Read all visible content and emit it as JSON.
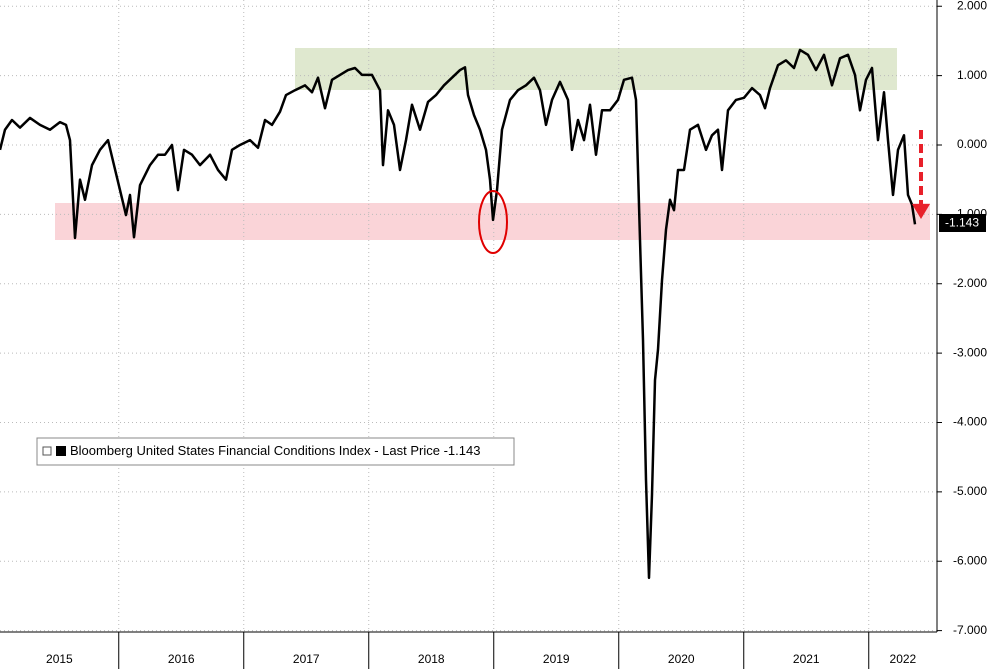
{
  "chart_data": {
    "type": "line",
    "x": [
      2015.05,
      2015.09,
      2015.146,
      2015.21,
      2015.29,
      2015.37,
      2015.45,
      2015.53,
      2015.578,
      2015.61,
      2015.65,
      2015.69,
      2015.73,
      2015.786,
      2015.85,
      2015.914,
      2015.962,
      2016.01,
      2016.058,
      2016.09,
      2016.122,
      2016.17,
      2016.25,
      2016.314,
      2016.37,
      2016.426,
      2016.474,
      2016.522,
      2016.586,
      2016.65,
      2016.73,
      2016.794,
      2016.858,
      2016.906,
      2016.97,
      2017.05,
      2017.114,
      2017.17,
      2017.226,
      2017.29,
      2017.338,
      2017.41,
      2017.49,
      2017.546,
      2017.594,
      2017.65,
      2017.706,
      2017.77,
      2017.834,
      2017.89,
      2017.946,
      2018.026,
      2018.09,
      2018.114,
      2018.154,
      2018.202,
      2018.25,
      2018.298,
      2018.346,
      2018.41,
      2018.474,
      2018.538,
      2018.602,
      2018.666,
      2018.73,
      2018.77,
      2018.794,
      2018.842,
      2018.89,
      2018.938,
      2018.97,
      2018.994,
      2019.026,
      2019.066,
      2019.13,
      2019.194,
      2019.258,
      2019.322,
      2019.37,
      2019.418,
      2019.466,
      2019.53,
      2019.594,
      2019.626,
      2019.674,
      2019.722,
      2019.77,
      2019.818,
      2019.866,
      2019.93,
      2019.994,
      2020.042,
      2020.106,
      2020.138,
      2020.17,
      2020.194,
      2020.218,
      2020.242,
      2020.266,
      2020.29,
      2020.314,
      2020.346,
      2020.378,
      2020.41,
      2020.442,
      2020.474,
      2020.522,
      2020.57,
      2020.634,
      2020.698,
      2020.746,
      2020.794,
      2020.826,
      2020.874,
      2020.938,
      2021.002,
      2021.066,
      2021.13,
      2021.17,
      2021.21,
      2021.274,
      2021.338,
      2021.402,
      2021.45,
      2021.514,
      2021.578,
      2021.642,
      2021.706,
      2021.77,
      2021.834,
      2021.89,
      2021.93,
      2021.978,
      2022.026,
      2022.074,
      2022.122,
      2022.154,
      2022.194,
      2022.234,
      2022.282,
      2022.314,
      2022.346,
      2022.37
    ],
    "series": [
      {
        "name": "Bloomberg United States Financial Conditions Index - Last Price",
        "color": "#000000",
        "values": [
          -0.07,
          0.22,
          0.36,
          0.25,
          0.39,
          0.29,
          0.22,
          0.33,
          0.29,
          0.07,
          -1.34,
          -0.5,
          -0.79,
          -0.29,
          -0.07,
          0.07,
          -0.29,
          -0.65,
          -1.01,
          -0.72,
          -1.33,
          -0.58,
          -0.29,
          -0.14,
          -0.14,
          0,
          -0.65,
          -0.07,
          -0.14,
          -0.29,
          -0.14,
          -0.36,
          -0.5,
          -0.07,
          0,
          0.07,
          -0.04,
          0.36,
          0.29,
          0.48,
          0.72,
          0.79,
          0.86,
          0.76,
          0.97,
          0.53,
          0.94,
          1.01,
          1.08,
          1.11,
          1.01,
          1.01,
          0.79,
          -0.29,
          0.5,
          0.29,
          -0.36,
          0.07,
          0.58,
          0.22,
          0.62,
          0.72,
          0.86,
          0.97,
          1.08,
          1.12,
          0.72,
          0.43,
          0.22,
          -0.07,
          -0.5,
          -1.08,
          -0.65,
          0.22,
          0.65,
          0.79,
          0.86,
          0.97,
          0.79,
          0.29,
          0.65,
          0.91,
          0.65,
          -0.07,
          0.36,
          0.07,
          0.58,
          -0.14,
          0.5,
          0.5,
          0.65,
          0.94,
          0.97,
          0.65,
          -1.37,
          -2.81,
          -4.83,
          -6.24,
          -5.04,
          -3.39,
          -2.95,
          -1.95,
          -1.22,
          -0.79,
          -0.94,
          -0.36,
          -0.36,
          0.22,
          0.29,
          -0.07,
          0.14,
          0.22,
          -0.36,
          0.5,
          0.65,
          0.68,
          0.82,
          0.72,
          0.53,
          0.82,
          1.15,
          1.22,
          1.11,
          1.37,
          1.3,
          1.08,
          1.3,
          0.86,
          1.25,
          1.3,
          1.01,
          0.5,
          0.94,
          1.11,
          0.07,
          0.76,
          0.07,
          -0.72,
          -0.07,
          0.14,
          -0.72,
          -0.86,
          -1.143
        ]
      }
    ],
    "last_price": -1.143,
    "xlim": [
      2015.05,
      2022.546
    ],
    "xticks": [
      2015,
      2016,
      2017,
      2018,
      2019,
      2020,
      2021,
      2022
    ],
    "ylim": [
      -7.02,
      2.09
    ],
    "yticks": [
      {
        "value": 2,
        "label": "2.000"
      },
      {
        "value": 1,
        "label": "1.000"
      },
      {
        "value": 0,
        "label": "0.000"
      },
      {
        "value": -1,
        "label": "-1.000"
      },
      {
        "value": -2,
        "label": "-2.000"
      },
      {
        "value": -3,
        "label": "-3.000"
      },
      {
        "value": -4,
        "label": "-4.000"
      },
      {
        "value": -5,
        "label": "-5.000"
      },
      {
        "value": -6,
        "label": "-6.000"
      },
      {
        "value": -7,
        "label": "-7.000"
      }
    ],
    "grid": true
  }
}
